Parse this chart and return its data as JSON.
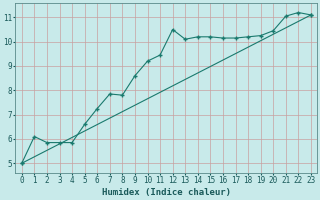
{
  "title": "",
  "xlabel": "Humidex (Indice chaleur)",
  "bg_color": "#c8eaea",
  "line_color": "#1a7a6e",
  "grid_color": "#c8a0a0",
  "xlim": [
    -0.5,
    23.5
  ],
  "ylim": [
    4.6,
    11.6
  ],
  "xticks": [
    0,
    1,
    2,
    3,
    4,
    5,
    6,
    7,
    8,
    9,
    10,
    11,
    12,
    13,
    14,
    15,
    16,
    17,
    18,
    19,
    20,
    21,
    22,
    23
  ],
  "yticks": [
    5,
    6,
    7,
    8,
    9,
    10,
    11
  ],
  "curve1_x": [
    0,
    1,
    2,
    3,
    4,
    5,
    6,
    7,
    8,
    9,
    10,
    11,
    12,
    13,
    14,
    15,
    16,
    17,
    18,
    19,
    20,
    21,
    22,
    23
  ],
  "curve1_y": [
    5.0,
    6.1,
    5.85,
    5.85,
    5.85,
    6.6,
    7.25,
    7.85,
    7.8,
    8.6,
    9.2,
    9.45,
    10.5,
    10.1,
    10.2,
    10.2,
    10.15,
    10.15,
    10.2,
    10.25,
    10.45,
    11.05,
    11.2,
    11.1
  ],
  "curve2_x": [
    0,
    23
  ],
  "curve2_y": [
    5.0,
    11.1
  ],
  "marker": "+",
  "markersize": 3.5,
  "linewidth": 0.8,
  "xlabel_fontsize": 6.5,
  "tick_fontsize": 5.5
}
